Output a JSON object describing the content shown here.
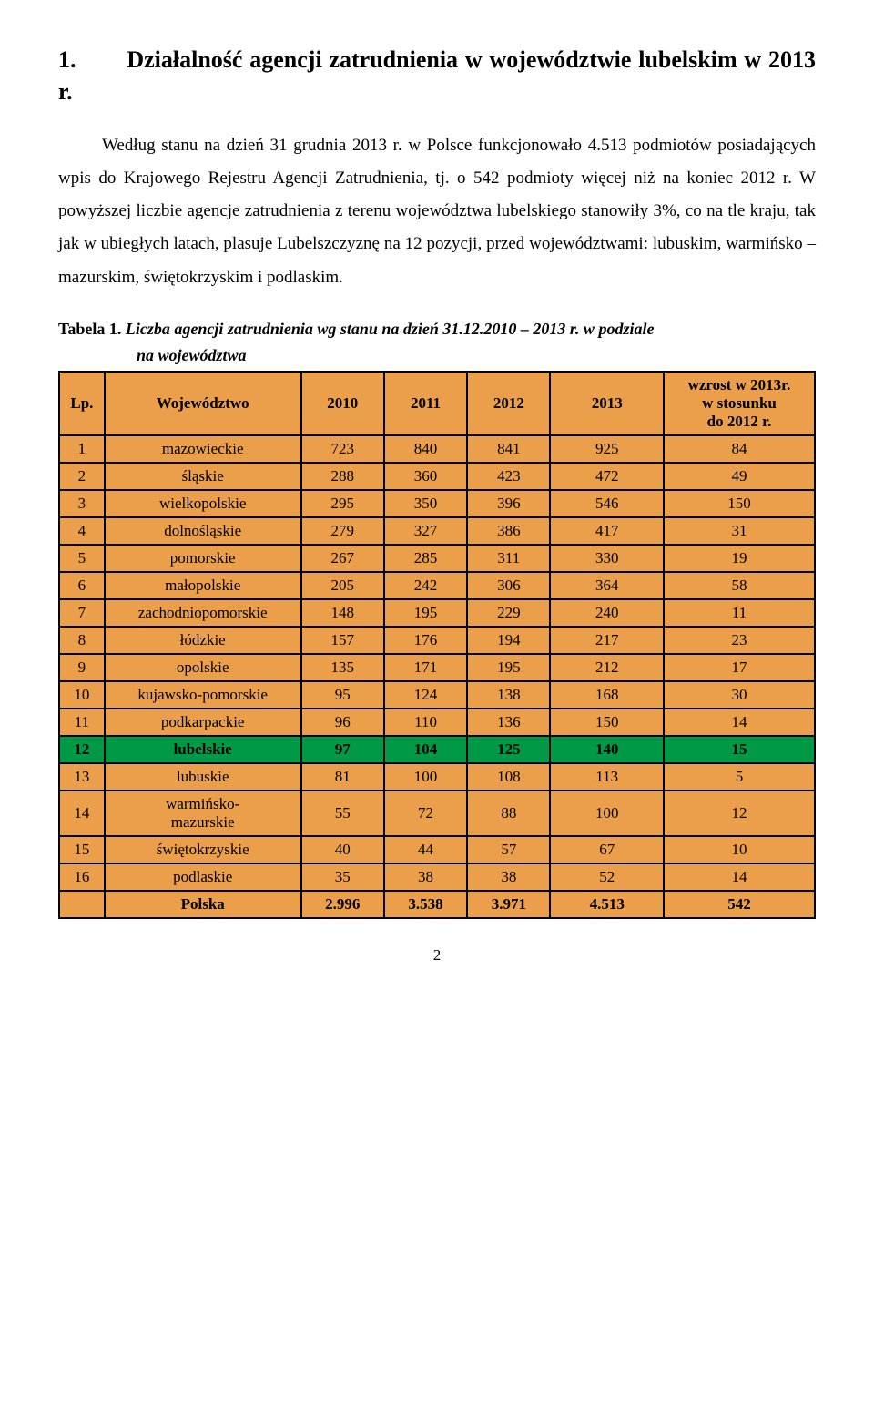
{
  "heading_prefix": "1.",
  "heading_main": "Działalność agencji zatrudnienia w województwie lubelskim w 2013 r.",
  "para1_a": "Według stanu na dzień 31 grudnia 2013 r.  w Polsce funkcjonowało 4.513 podmiotów posiadających wpis do Krajowego Rejestru Agencji Zatrudnienia, tj.  o 542 podmioty więcej niż na koniec 2012 r. W powyższej liczbie agencje zatrudnienia z terenu województwa lubelskiego stanowiły 3%, co na tle kraju, tak jak w ubiegłych latach, plasuje Lubelszczyznę na 12 pozycji, przed województwami: lubuskim, warmińsko – mazurskim, świętokrzyskim i podlaskim.",
  "table_caption_label": "Tabela 1.",
  "table_caption_title_l1": "Liczba agencji zatrudnienia wg stanu na dzień 31.12.2010 – 2013 r.  w podziale",
  "table_caption_title_l2": "na województwa",
  "columns": {
    "lp": "Lp.",
    "woj": "Województwo",
    "y2010": "2010",
    "y2011": "2011",
    "y2012": "2012",
    "y2013": "2013",
    "growth_l1": "wzrost w 2013r.",
    "growth_l2": "w stosunku",
    "growth_l3": "do 2012 r."
  },
  "rows": [
    {
      "lp": "1",
      "woj": "mazowieckie",
      "v": [
        "723",
        "840",
        "841",
        "925",
        "84"
      ],
      "hl": false
    },
    {
      "lp": "2",
      "woj": "śląskie",
      "v": [
        "288",
        "360",
        "423",
        "472",
        "49"
      ],
      "hl": false
    },
    {
      "lp": "3",
      "woj": "wielkopolskie",
      "v": [
        "295",
        "350",
        "396",
        "546",
        "150"
      ],
      "hl": false
    },
    {
      "lp": "4",
      "woj": "dolnośląskie",
      "v": [
        "279",
        "327",
        "386",
        "417",
        "31"
      ],
      "hl": false
    },
    {
      "lp": "5",
      "woj": "pomorskie",
      "v": [
        "267",
        "285",
        "311",
        "330",
        "19"
      ],
      "hl": false
    },
    {
      "lp": "6",
      "woj": "małopolskie",
      "v": [
        "205",
        "242",
        "306",
        "364",
        "58"
      ],
      "hl": false
    },
    {
      "lp": "7",
      "woj": "zachodniopomorskie",
      "v": [
        "148",
        "195",
        "229",
        "240",
        "11"
      ],
      "hl": false
    },
    {
      "lp": "8",
      "woj": "łódzkie",
      "v": [
        "157",
        "176",
        "194",
        "217",
        "23"
      ],
      "hl": false
    },
    {
      "lp": "9",
      "woj": "opolskie",
      "v": [
        "135",
        "171",
        "195",
        "212",
        "17"
      ],
      "hl": false
    },
    {
      "lp": "10",
      "woj": "kujawsko-pomorskie",
      "v": [
        "95",
        "124",
        "138",
        "168",
        "30"
      ],
      "hl": false
    },
    {
      "lp": "11",
      "woj": "podkarpackie",
      "v": [
        "96",
        "110",
        "136",
        "150",
        "14"
      ],
      "hl": false
    },
    {
      "lp": "12",
      "woj": "lubelskie",
      "v": [
        "97",
        "104",
        "125",
        "140",
        "15"
      ],
      "hl": true
    },
    {
      "lp": "13",
      "woj": "lubuskie",
      "v": [
        "81",
        "100",
        "108",
        "113",
        "5"
      ],
      "hl": false
    },
    {
      "lp": "14",
      "woj": "warmińsko-\nmazurskie",
      "v": [
        "55",
        "72",
        "88",
        "100",
        "12"
      ],
      "hl": false
    },
    {
      "lp": "15",
      "woj": "świętokrzyskie",
      "v": [
        "40",
        "44",
        "57",
        "67",
        "10"
      ],
      "hl": false
    },
    {
      "lp": "16",
      "woj": "podlaskie",
      "v": [
        "35",
        "38",
        "38",
        "52",
        "14"
      ],
      "hl": false
    }
  ],
  "total": {
    "label": "Polska",
    "v": [
      "2.996",
      "3.538",
      "3.971",
      "4.513",
      "542"
    ]
  },
  "pagenum": "2",
  "colors": {
    "header_bg": "#ec9f4a",
    "highlight_bg": "#009a46",
    "border": "#000000",
    "text": "#000000",
    "page_bg": "#ffffff"
  },
  "fonts": {
    "body_pt": 19,
    "heading_pt": 26,
    "caption_pt": 18,
    "table_pt": 17
  },
  "col_widths_pct": [
    6,
    26,
    11,
    11,
    11,
    15,
    20
  ]
}
